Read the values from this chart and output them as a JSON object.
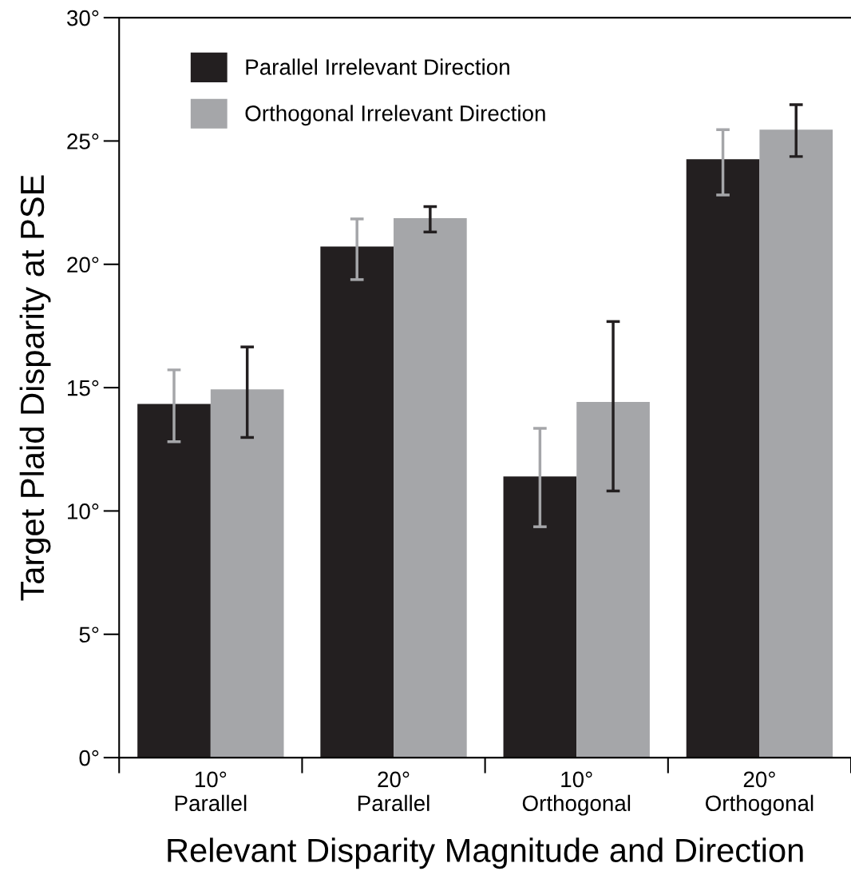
{
  "chart_data": {
    "type": "bar",
    "xlabel": "Relevant Disparity Magnitude and Direction",
    "ylabel": "Target Plaid Disparity at PSE",
    "categories": [
      "10°\nParallel",
      "20°\nParallel",
      "10°\nOrthogonal",
      "20°\nOrthogonal"
    ],
    "series": [
      {
        "name": "Parallel Irrelevant Direction",
        "color": "#231f20",
        "values": [
          14.34,
          20.72,
          11.4,
          24.26
        ],
        "errors": [
          [
            12.81,
            15.72
          ],
          [
            19.38,
            21.84
          ],
          [
            9.36,
            13.35
          ],
          [
            22.81,
            25.46
          ]
        ]
      },
      {
        "name": "Orthogonal Irrelevant Direction",
        "color": "#a5a6a9",
        "values": [
          14.93,
          21.87,
          14.42,
          25.46
        ],
        "errors": [
          [
            12.98,
            16.65
          ],
          [
            21.31,
            22.34
          ],
          [
            10.81,
            17.68
          ],
          [
            24.37,
            26.47
          ]
        ]
      }
    ],
    "ylim": [
      0,
      30
    ],
    "yticks": [
      {
        "value": 0,
        "label": "0°"
      },
      {
        "value": 5,
        "label": "5°"
      },
      {
        "value": 10,
        "label": "10°"
      },
      {
        "value": 15,
        "label": "15°"
      },
      {
        "value": 20,
        "label": "20°"
      },
      {
        "value": 25,
        "label": "25°"
      },
      {
        "value": 30,
        "label": "30°"
      }
    ],
    "legend": "top left",
    "grid": false
  }
}
